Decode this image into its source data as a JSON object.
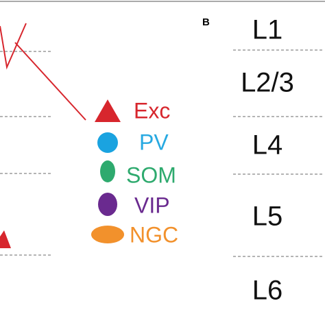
{
  "panel_label": "B",
  "legend": [
    {
      "label": "Exc"
    },
    {
      "label": "PV"
    },
    {
      "label": "SOM"
    },
    {
      "label": "VIP"
    },
    {
      "label": "NGC"
    }
  ],
  "layers": [
    "L1",
    "L2/3",
    "L4",
    "L5",
    "L6"
  ]
}
